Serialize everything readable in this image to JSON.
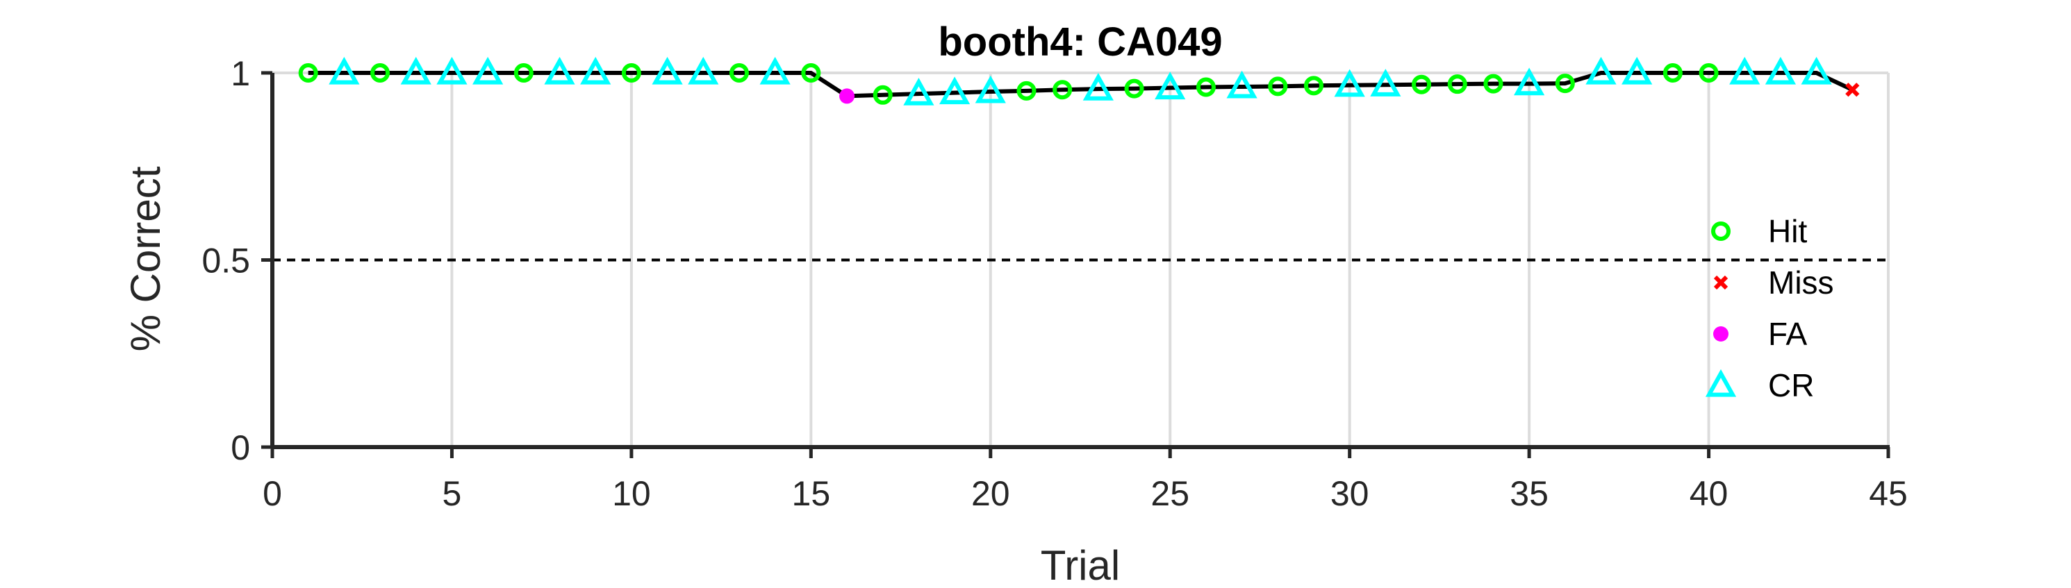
{
  "chart_data": {
    "type": "line",
    "title": "booth4: CA049",
    "xlabel": "Trial",
    "ylabel": "% Correct",
    "xlim": [
      0,
      45
    ],
    "ylim": [
      0,
      1
    ],
    "xticks": [
      0,
      5,
      10,
      15,
      20,
      25,
      30,
      35,
      40,
      45
    ],
    "yticks": [
      0,
      0.5,
      1
    ],
    "grid": true,
    "reference_line": 0.5,
    "legend_position": "right",
    "colors": {
      "line": "#000000",
      "Hit": "#00ff00",
      "Miss": "#ff0000",
      "FA": "#ff00ff",
      "CR": "#00ffff",
      "grid": "#dcdcdc",
      "axis": "#262626"
    },
    "x": [
      1,
      2,
      3,
      4,
      5,
      6,
      7,
      8,
      9,
      10,
      11,
      12,
      13,
      14,
      15,
      16,
      17,
      18,
      19,
      20,
      21,
      22,
      23,
      24,
      25,
      26,
      27,
      28,
      29,
      30,
      31,
      32,
      33,
      34,
      35,
      36,
      37,
      38,
      39,
      40,
      41,
      42,
      43,
      44
    ],
    "y": [
      1,
      1,
      1,
      1,
      1,
      1,
      1,
      1,
      1,
      1,
      1,
      1,
      1,
      1,
      1,
      0.938,
      0.941,
      0.944,
      0.947,
      0.95,
      0.952,
      0.955,
      0.957,
      0.958,
      0.96,
      0.962,
      0.963,
      0.964,
      0.966,
      0.967,
      0.968,
      0.969,
      0.97,
      0.971,
      0.971,
      0.972,
      1,
      1,
      1,
      1,
      1,
      1,
      1,
      0.955
    ],
    "outcomes": [
      "Hit",
      "CR",
      "Hit",
      "CR",
      "CR",
      "CR",
      "Hit",
      "CR",
      "CR",
      "Hit",
      "CR",
      "CR",
      "Hit",
      "CR",
      "Hit",
      "FA",
      "Hit",
      "CR",
      "CR",
      "CR",
      "Hit",
      "Hit",
      "CR",
      "Hit",
      "CR",
      "Hit",
      "CR",
      "Hit",
      "Hit",
      "CR",
      "CR",
      "Hit",
      "Hit",
      "Hit",
      "CR",
      "Hit",
      "CR",
      "CR",
      "Hit",
      "Hit",
      "CR",
      "CR",
      "CR",
      "Miss"
    ],
    "legend": [
      {
        "name": "Hit",
        "marker": "circle"
      },
      {
        "name": "Miss",
        "marker": "x"
      },
      {
        "name": "FA",
        "marker": "dot"
      },
      {
        "name": "CR",
        "marker": "triangle"
      }
    ]
  }
}
